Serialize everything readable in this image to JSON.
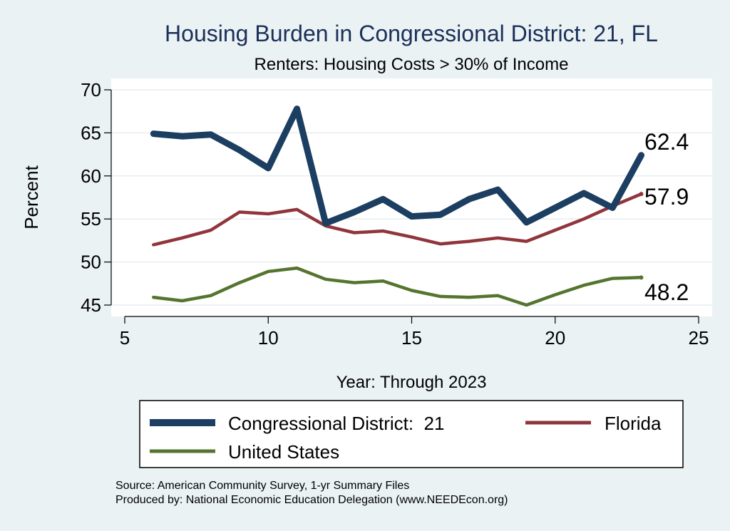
{
  "chart_data": {
    "type": "line",
    "title": "Housing Burden in Congressional District:  21, FL",
    "subtitle": "Renters: Housing Costs > 30% of Income",
    "xlabel": "Year: Through 2023",
    "ylabel": "Percent",
    "xlim": [
      5,
      25
    ],
    "ylim": [
      44,
      71
    ],
    "xticks": [
      5,
      10,
      15,
      20,
      25
    ],
    "yticks": [
      45,
      50,
      55,
      60,
      65,
      70
    ],
    "grid": true,
    "legend_position": "bottom",
    "series": [
      {
        "name": "Congressional District:  21",
        "color": "#1b3e61",
        "x": [
          6,
          7,
          8,
          9,
          10,
          11,
          12,
          13,
          14,
          15,
          16,
          17,
          18,
          19,
          20,
          21,
          22,
          23
        ],
        "values": [
          64.9,
          64.6,
          64.8,
          63.0,
          60.9,
          67.8,
          54.5,
          55.8,
          57.3,
          55.3,
          55.5,
          57.3,
          58.4,
          54.6,
          56.3,
          58.0,
          56.3,
          62.4
        ],
        "end_label": "62.4"
      },
      {
        "name": "Florida",
        "color": "#90353b",
        "x": [
          6,
          7,
          8,
          9,
          10,
          11,
          12,
          13,
          14,
          15,
          16,
          17,
          18,
          19,
          20,
          21,
          22,
          23
        ],
        "values": [
          52.0,
          52.8,
          53.7,
          55.8,
          55.6,
          56.1,
          54.2,
          53.4,
          53.6,
          52.9,
          52.1,
          52.4,
          52.8,
          52.4,
          53.7,
          55.0,
          56.5,
          57.9
        ],
        "end_label": "57.9"
      },
      {
        "name": "United States",
        "color": "#55752f",
        "x": [
          6,
          7,
          8,
          9,
          10,
          11,
          12,
          13,
          14,
          15,
          16,
          17,
          18,
          19,
          20,
          21,
          22,
          23
        ],
        "values": [
          45.9,
          45.5,
          46.1,
          47.6,
          48.9,
          49.3,
          48.0,
          47.6,
          47.8,
          46.7,
          46.0,
          45.9,
          46.1,
          45.0,
          46.2,
          47.3,
          48.1,
          48.2
        ],
        "end_label": "48.2"
      }
    ],
    "source_lines": [
      "Source: American Community Survey, 1-yr Summary Files",
      "Produced by: National Economic Education Delegation (www.NEEDEcon.org)"
    ]
  }
}
